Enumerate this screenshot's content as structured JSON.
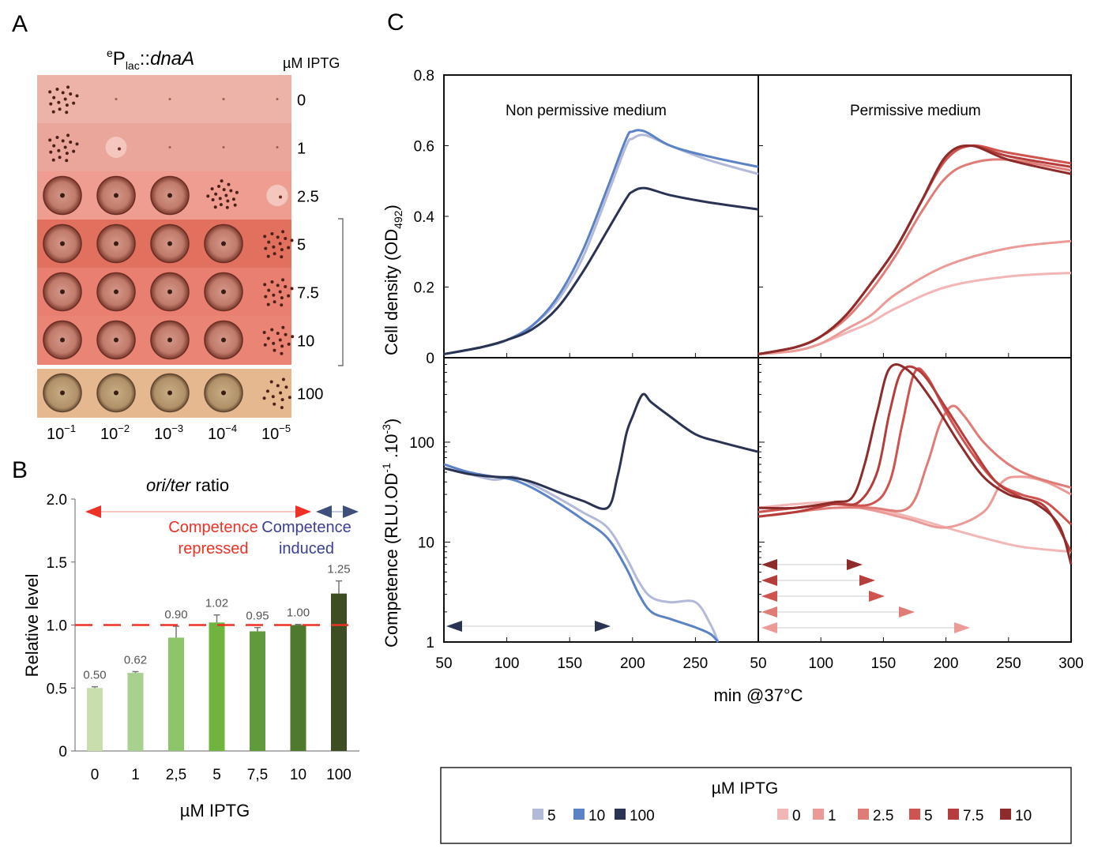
{
  "panel_a": {
    "letter": "A",
    "title_sup": "e",
    "title_p": "P",
    "title_sub": "lac",
    "title_sep": "::",
    "title_gene": "dnaA",
    "iptg_header": "µM IPTG",
    "rows": [
      "0",
      "1",
      "2.5",
      "5",
      "7.5",
      "10",
      "100"
    ],
    "dilution_base": "10",
    "dilution_exps": [
      "−1",
      "−2",
      "−3",
      "−4",
      "−5"
    ],
    "colors": {
      "plate_red": "#e9786f",
      "plate_light": "#f0a89c",
      "plate_tan": "#dcc3a0",
      "colony": "#b36a55"
    },
    "growth": [
      [
        0.5,
        0,
        0,
        0,
        0
      ],
      [
        0.5,
        0.15,
        0,
        0,
        0
      ],
      [
        1,
        1,
        1,
        0.6,
        0.05
      ],
      [
        1,
        1,
        1,
        1,
        0.5
      ],
      [
        1,
        1,
        1,
        1,
        0.5
      ],
      [
        1,
        1,
        1,
        1,
        0.45
      ],
      [
        1,
        1,
        1,
        1,
        0.4
      ]
    ]
  },
  "panel_b": {
    "letter": "B",
    "title_italic": "ori/ter",
    "title_rest": " ratio",
    "repressed_line1": "Competence",
    "repressed_line2": "repressed",
    "induced_line1": "Competence",
    "induced_line2": "induced",
    "colors": {
      "repressed": "#ee3124",
      "induced": "#3a3f8f",
      "arrow_blue": "#3d4f7a",
      "ref_line": "#ee3124"
    }
  },
  "panel_c": {
    "letter": "C",
    "left_title": "Non permissive medium",
    "right_title": "Permissive medium",
    "od_ylabel_main": "Cell density (OD",
    "od_ylabel_sub": "492",
    "od_ylabel_end": ")",
    "comp_ylabel": "Competence (RLU.OD",
    "comp_ylabel_sup1": "-1",
    "comp_ylabel_mid": " .10",
    "comp_ylabel_sup2": "-3",
    "comp_ylabel_end": ")",
    "xlabel": "min @37°C",
    "legend_title": "µM IPTG",
    "legend_left": [
      {
        "label": "5",
        "color": "#b3b9d9"
      },
      {
        "label": "10",
        "color": "#5b82c4"
      },
      {
        "label": "100",
        "color": "#2a3352"
      }
    ],
    "legend_right": [
      {
        "label": "0",
        "color": "#f2b6b6"
      },
      {
        "label": "1",
        "color": "#eb9a98"
      },
      {
        "label": "2.5",
        "color": "#e07c77"
      },
      {
        "label": "5",
        "color": "#cf5450"
      },
      {
        "label": "7.5",
        "color": "#b53e3c"
      },
      {
        "label": "10",
        "color": "#8e2b2b"
      }
    ]
  },
  "chart_data": [
    {
      "type": "bar",
      "panel": "B",
      "title": "ori/ter ratio",
      "xlabel": "µM IPTG",
      "ylabel": "Relative level",
      "categories": [
        "0",
        "1",
        "2,5",
        "5",
        "7,5",
        "10",
        "100"
      ],
      "values": [
        0.5,
        0.62,
        0.9,
        1.02,
        0.95,
        1.0,
        1.25
      ],
      "value_labels": [
        "0.50",
        "0.62",
        "0.90",
        "1.02",
        "0.95",
        "1.00",
        "1.25"
      ],
      "errors": [
        0.01,
        0.01,
        0.09,
        0.06,
        0.03,
        0.005,
        0.1
      ],
      "colors": [
        "#c8deab",
        "#a8d08e",
        "#8cc56a",
        "#6fb43e",
        "#5f9a3c",
        "#4f7a2e",
        "#3f4d22"
      ],
      "ylim": [
        0,
        2.0
      ],
      "yticks": [
        "0",
        "0.5",
        "1.0",
        "1.5",
        "2.0"
      ],
      "reference_line": 1.0
    },
    {
      "type": "line",
      "panel": "C top-left",
      "title": "Non permissive medium",
      "ylabel": "Cell density (OD492)",
      "xlim": [
        50,
        300
      ],
      "ylim": [
        0,
        0.8
      ],
      "yticks": [
        "0",
        "0.2",
        "0.4",
        "0.6",
        "0.8"
      ],
      "series": [
        {
          "name": "5",
          "x": [
            50,
            80,
            100,
            120,
            140,
            160,
            180,
            195,
            200,
            210,
            230,
            260,
            300
          ],
          "y": [
            0.01,
            0.03,
            0.05,
            0.09,
            0.16,
            0.28,
            0.46,
            0.6,
            0.62,
            0.63,
            0.6,
            0.56,
            0.52
          ]
        },
        {
          "name": "10",
          "x": [
            50,
            80,
            100,
            120,
            140,
            160,
            180,
            195,
            200,
            210,
            230,
            260,
            300
          ],
          "y": [
            0.01,
            0.03,
            0.05,
            0.09,
            0.17,
            0.3,
            0.48,
            0.62,
            0.64,
            0.64,
            0.6,
            0.57,
            0.54
          ]
        },
        {
          "name": "100",
          "x": [
            50,
            80,
            100,
            120,
            140,
            160,
            180,
            195,
            200,
            210,
            230,
            260,
            300
          ],
          "y": [
            0.01,
            0.03,
            0.05,
            0.08,
            0.14,
            0.24,
            0.36,
            0.45,
            0.47,
            0.48,
            0.46,
            0.44,
            0.42
          ]
        }
      ]
    },
    {
      "type": "line",
      "panel": "C top-right",
      "title": "Permissive medium",
      "ylabel": "Cell density (OD492)",
      "xlim": [
        50,
        300
      ],
      "ylim": [
        0,
        0.8
      ],
      "series": [
        {
          "name": "0",
          "x": [
            50,
            80,
            100,
            120,
            140,
            160,
            200,
            250,
            300
          ],
          "y": [
            0.01,
            0.02,
            0.04,
            0.07,
            0.1,
            0.14,
            0.2,
            0.23,
            0.24
          ]
        },
        {
          "name": "1",
          "x": [
            50,
            80,
            100,
            120,
            140,
            160,
            200,
            250,
            300
          ],
          "y": [
            0.01,
            0.02,
            0.04,
            0.08,
            0.12,
            0.18,
            0.26,
            0.31,
            0.33
          ]
        },
        {
          "name": "2.5",
          "x": [
            50,
            80,
            100,
            120,
            140,
            160,
            180,
            200,
            220,
            250,
            300
          ],
          "y": [
            0.01,
            0.03,
            0.06,
            0.11,
            0.19,
            0.29,
            0.41,
            0.51,
            0.55,
            0.56,
            0.53
          ]
        },
        {
          "name": "5",
          "x": [
            50,
            80,
            100,
            120,
            140,
            160,
            180,
            200,
            220,
            250,
            300
          ],
          "y": [
            0.01,
            0.03,
            0.06,
            0.12,
            0.21,
            0.31,
            0.44,
            0.56,
            0.6,
            0.58,
            0.55
          ]
        },
        {
          "name": "7.5",
          "x": [
            50,
            80,
            100,
            120,
            140,
            160,
            180,
            200,
            220,
            250,
            300
          ],
          "y": [
            0.01,
            0.03,
            0.06,
            0.12,
            0.21,
            0.31,
            0.44,
            0.57,
            0.6,
            0.57,
            0.54
          ]
        },
        {
          "name": "10",
          "x": [
            50,
            80,
            100,
            120,
            140,
            160,
            180,
            200,
            220,
            250,
            300
          ],
          "y": [
            0.01,
            0.03,
            0.06,
            0.12,
            0.21,
            0.31,
            0.44,
            0.57,
            0.6,
            0.56,
            0.52
          ]
        }
      ]
    },
    {
      "type": "line",
      "panel": "C bottom-left",
      "ylabel": "Competence (RLU.OD-1 .10-3)",
      "xlabel": "min @37°C",
      "yscale": "log",
      "xlim": [
        50,
        300
      ],
      "ylim": [
        1,
        700
      ],
      "yticks": [
        "1",
        "10",
        "100"
      ],
      "xticks": [
        "50",
        "100",
        "150",
        "200",
        "250",
        "300"
      ],
      "series": [
        {
          "name": "5",
          "x": [
            50,
            70,
            90,
            105,
            120,
            140,
            160,
            180,
            195,
            205,
            215,
            230,
            250,
            262,
            268
          ],
          "y": [
            55,
            48,
            42,
            45,
            38,
            28,
            20,
            14,
            7,
            4,
            2.8,
            2.5,
            2.5,
            1.5,
            1
          ]
        },
        {
          "name": "10",
          "x": [
            50,
            70,
            90,
            105,
            120,
            140,
            160,
            180,
            195,
            205,
            215,
            230,
            250,
            262,
            268
          ],
          "y": [
            60,
            50,
            45,
            42,
            35,
            25,
            17,
            11,
            5.5,
            3,
            2,
            1.7,
            1.4,
            1.2,
            1
          ]
        },
        {
          "name": "100",
          "x": [
            50,
            70,
            90,
            105,
            120,
            140,
            160,
            180,
            188,
            195,
            200,
            208,
            215,
            230,
            250,
            270,
            300
          ],
          "y": [
            55,
            48,
            45,
            44,
            40,
            32,
            26,
            22,
            45,
            120,
            180,
            300,
            250,
            180,
            120,
            100,
            80
          ]
        }
      ]
    },
    {
      "type": "line",
      "panel": "C bottom-right",
      "yscale": "log",
      "xlim": [
        50,
        300
      ],
      "ylim": [
        1,
        700
      ],
      "xticks": [
        "50",
        "100",
        "150",
        "200",
        "250",
        "300"
      ],
      "series": [
        {
          "name": "0",
          "x": [
            50,
            80,
            110,
            140,
            170,
            200,
            230,
            260,
            300
          ],
          "y": [
            22,
            24,
            25,
            22,
            18,
            14,
            11,
            9,
            8
          ]
        },
        {
          "name": "1",
          "x": [
            50,
            80,
            110,
            140,
            170,
            200,
            230,
            245,
            260,
            280,
            300
          ],
          "y": [
            20,
            22,
            24,
            21,
            17,
            14,
            20,
            40,
            45,
            40,
            30
          ]
        },
        {
          "name": "2.5",
          "x": [
            50,
            80,
            110,
            140,
            170,
            185,
            195,
            205,
            215,
            230,
            250,
            270,
            300
          ],
          "y": [
            18,
            20,
            22,
            22,
            22,
            60,
            150,
            230,
            180,
            100,
            60,
            45,
            35
          ]
        },
        {
          "name": "5",
          "x": [
            50,
            80,
            110,
            140,
            155,
            165,
            175,
            185,
            200,
            220,
            240,
            260,
            280,
            300
          ],
          "y": [
            20,
            22,
            24,
            24,
            40,
            150,
            500,
            450,
            200,
            80,
            40,
            30,
            25,
            15
          ]
        },
        {
          "name": "7.5",
          "x": [
            50,
            80,
            110,
            130,
            145,
            155,
            165,
            180,
            200,
            220,
            240,
            260,
            280,
            300
          ],
          "y": [
            18,
            20,
            24,
            25,
            50,
            200,
            520,
            500,
            220,
            90,
            40,
            28,
            22,
            8
          ]
        },
        {
          "name": "10",
          "x": [
            50,
            80,
            110,
            125,
            135,
            145,
            155,
            170,
            190,
            210,
            230,
            250,
            270,
            290,
            300
          ],
          "y": [
            22,
            22,
            25,
            28,
            60,
            200,
            550,
            520,
            250,
            100,
            45,
            30,
            25,
            15,
            6
          ]
        }
      ]
    }
  ]
}
